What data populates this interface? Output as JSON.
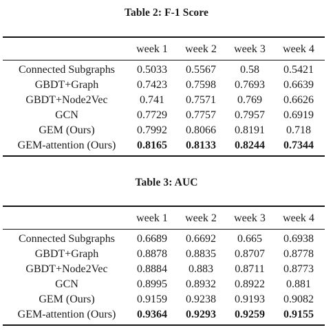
{
  "table2": {
    "caption": "Table 2: F-1 Score",
    "header": [
      "",
      "week 1",
      "week 2",
      "week 3",
      "week 4"
    ],
    "rows": [
      [
        "Connected Subgraphs",
        "0.5033",
        "0.5567",
        "0.58",
        "0.5421"
      ],
      [
        "GBDT+Graph",
        "0.7423",
        "0.7598",
        "0.7693",
        "0.6639"
      ],
      [
        "GBDT+Node2Vec",
        "0.741",
        "0.7571",
        "0.769",
        "0.6626"
      ],
      [
        "GCN",
        "0.7729",
        "0.7757",
        "0.7957",
        "0.6919"
      ],
      [
        "GEM (Ours)",
        "0.7992",
        "0.8066",
        "0.8191",
        "0.718"
      ],
      [
        "GEM-attention (Ours)",
        "0.8165",
        "0.8133",
        "0.8244",
        "0.7344"
      ]
    ]
  },
  "table3": {
    "caption": "Table 3: AUC",
    "header": [
      "",
      "week 1",
      "week 2",
      "week 3",
      "week 4"
    ],
    "rows": [
      [
        "Connected Subgraphs",
        "0.6689",
        "0.6692",
        "0.665",
        "0.6938"
      ],
      [
        "GBDT+Graph",
        "0.8878",
        "0.8835",
        "0.8707",
        "0.8778"
      ],
      [
        "GBDT+Node2Vec",
        "0.8884",
        "0.883",
        "0.8711",
        "0.8773"
      ],
      [
        "GCN",
        "0.8995",
        "0.8932",
        "0.8922",
        "0.881"
      ],
      [
        "GEM (Ours)",
        "0.9159",
        "0.9238",
        "0.9193",
        "0.9082"
      ],
      [
        "GEM-attention (Ours)",
        "0.9364",
        "0.9293",
        "0.9259",
        "0.9155"
      ]
    ]
  }
}
